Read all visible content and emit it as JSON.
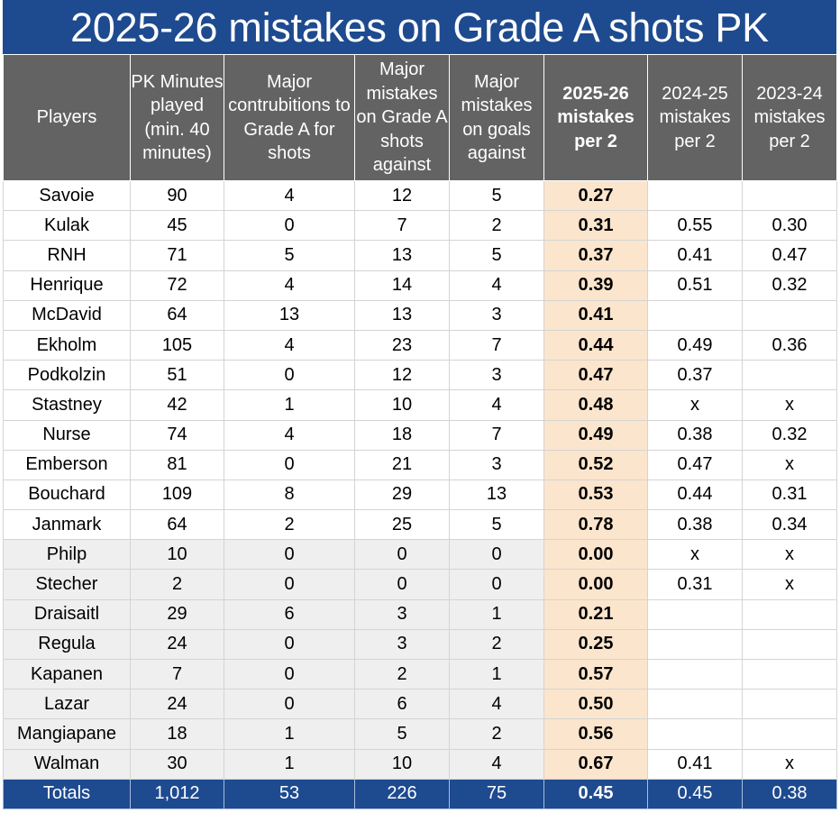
{
  "title": "2025-26 mistakes on Grade A shots PK",
  "colors": {
    "title_bg": "#1e4a8f",
    "header_bg": "#636363",
    "highlight_col": "#fbe5cd",
    "gray_rows": "#efefef",
    "totals_bg": "#1e4a8f"
  },
  "headers": [
    "Players",
    "PK Minutes played (min. 40 minutes)",
    "Major contrubitions to Grade A for shots",
    "Major mistakes on Grade A shots against",
    "Major mistakes on goals against",
    "2025-26 mistakes per 2",
    "2024-25 mistakes per 2",
    "2023-24 mistakes per 2"
  ],
  "rows": [
    {
      "player": "Savoie",
      "minutes": "90",
      "contributions": "4",
      "mistakes_grade_a": "12",
      "mistakes_goals": "5",
      "m2526": "0.27",
      "m2425": "",
      "m2324": "",
      "group": "qualified"
    },
    {
      "player": "Kulak",
      "minutes": "45",
      "contributions": "0",
      "mistakes_grade_a": "7",
      "mistakes_goals": "2",
      "m2526": "0.31",
      "m2425": "0.55",
      "m2324": "0.30",
      "group": "qualified"
    },
    {
      "player": "RNH",
      "minutes": "71",
      "contributions": "5",
      "mistakes_grade_a": "13",
      "mistakes_goals": "5",
      "m2526": "0.37",
      "m2425": "0.41",
      "m2324": "0.47",
      "group": "qualified"
    },
    {
      "player": "Henrique",
      "minutes": "72",
      "contributions": "4",
      "mistakes_grade_a": "14",
      "mistakes_goals": "4",
      "m2526": "0.39",
      "m2425": "0.51",
      "m2324": "0.32",
      "group": "qualified"
    },
    {
      "player": "McDavid",
      "minutes": "64",
      "contributions": "13",
      "mistakes_grade_a": "13",
      "mistakes_goals": "3",
      "m2526": "0.41",
      "m2425": "",
      "m2324": "",
      "group": "qualified"
    },
    {
      "player": "Ekholm",
      "minutes": "105",
      "contributions": "4",
      "mistakes_grade_a": "23",
      "mistakes_goals": "7",
      "m2526": "0.44",
      "m2425": "0.49",
      "m2324": "0.36",
      "group": "qualified"
    },
    {
      "player": "Podkolzin",
      "minutes": "51",
      "contributions": "0",
      "mistakes_grade_a": "12",
      "mistakes_goals": "3",
      "m2526": "0.47",
      "m2425": "0.37",
      "m2324": "",
      "group": "qualified"
    },
    {
      "player": "Stastney",
      "minutes": "42",
      "contributions": "1",
      "mistakes_grade_a": "10",
      "mistakes_goals": "4",
      "m2526": "0.48",
      "m2425": "x",
      "m2324": "x",
      "group": "qualified"
    },
    {
      "player": "Nurse",
      "minutes": "74",
      "contributions": "4",
      "mistakes_grade_a": "18",
      "mistakes_goals": "7",
      "m2526": "0.49",
      "m2425": "0.38",
      "m2324": "0.32",
      "group": "qualified"
    },
    {
      "player": "Emberson",
      "minutes": "81",
      "contributions": "0",
      "mistakes_grade_a": "21",
      "mistakes_goals": "3",
      "m2526": "0.52",
      "m2425": "0.47",
      "m2324": "x",
      "group": "qualified"
    },
    {
      "player": "Bouchard",
      "minutes": "109",
      "contributions": "8",
      "mistakes_grade_a": "29",
      "mistakes_goals": "13",
      "m2526": "0.53",
      "m2425": "0.44",
      "m2324": "0.31",
      "group": "qualified"
    },
    {
      "player": "Janmark",
      "minutes": "64",
      "contributions": "2",
      "mistakes_grade_a": "25",
      "mistakes_goals": "5",
      "m2526": "0.78",
      "m2425": "0.38",
      "m2324": "0.34",
      "group": "qualified"
    },
    {
      "player": "Philp",
      "minutes": "10",
      "contributions": "0",
      "mistakes_grade_a": "0",
      "mistakes_goals": "0",
      "m2526": "0.00",
      "m2425": "x",
      "m2324": "x",
      "group": "below_min"
    },
    {
      "player": "Stecher",
      "minutes": "2",
      "contributions": "0",
      "mistakes_grade_a": "0",
      "mistakes_goals": "0",
      "m2526": "0.00",
      "m2425": "0.31",
      "m2324": "x",
      "group": "below_min"
    },
    {
      "player": "Draisaitl",
      "minutes": "29",
      "contributions": "6",
      "mistakes_grade_a": "3",
      "mistakes_goals": "1",
      "m2526": "0.21",
      "m2425": "",
      "m2324": "",
      "group": "below_min"
    },
    {
      "player": "Regula",
      "minutes": "24",
      "contributions": "0",
      "mistakes_grade_a": "3",
      "mistakes_goals": "2",
      "m2526": "0.25",
      "m2425": "",
      "m2324": "",
      "group": "below_min"
    },
    {
      "player": "Kapanen",
      "minutes": "7",
      "contributions": "0",
      "mistakes_grade_a": "2",
      "mistakes_goals": "1",
      "m2526": "0.57",
      "m2425": "",
      "m2324": "",
      "group": "below_min"
    },
    {
      "player": "Lazar",
      "minutes": "24",
      "contributions": "0",
      "mistakes_grade_a": "6",
      "mistakes_goals": "4",
      "m2526": "0.50",
      "m2425": "",
      "m2324": "",
      "group": "below_min"
    },
    {
      "player": "Mangiapane",
      "minutes": "18",
      "contributions": "1",
      "mistakes_grade_a": "5",
      "mistakes_goals": "2",
      "m2526": "0.56",
      "m2425": "",
      "m2324": "",
      "group": "below_min"
    },
    {
      "player": "Walman",
      "minutes": "30",
      "contributions": "1",
      "mistakes_grade_a": "10",
      "mistakes_goals": "4",
      "m2526": "0.67",
      "m2425": "0.41",
      "m2324": "x",
      "group": "below_min"
    }
  ],
  "totals": {
    "label": "Totals",
    "minutes": "1,012",
    "contributions": "53",
    "mistakes_grade_a": "226",
    "mistakes_goals": "75",
    "m2526": "0.45",
    "m2425": "0.45",
    "m2324": "0.38"
  }
}
